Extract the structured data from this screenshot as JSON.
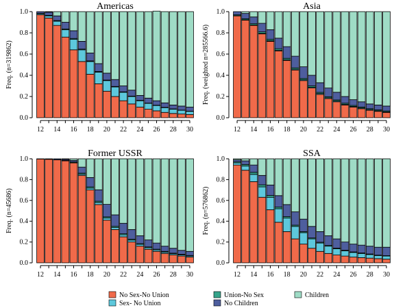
{
  "chart_data": {
    "type": "bar",
    "stacked": true,
    "categories": [
      12,
      13,
      14,
      15,
      16,
      17,
      18,
      19,
      20,
      21,
      22,
      23,
      24,
      25,
      26,
      27,
      28,
      29,
      30
    ],
    "x_tick_labels": [
      "12",
      "14",
      "16",
      "18",
      "20",
      "22",
      "24",
      "26",
      "28",
      "30"
    ],
    "y_ticks": [
      "0.0",
      "0.2",
      "0.4",
      "0.6",
      "0.8",
      "1.0"
    ],
    "ylim": [
      0,
      1
    ],
    "legend_position": "bottom",
    "series_order": [
      "No Sex-No Union",
      "Sex- No Union",
      "Union-No Sex",
      "No Children",
      "Children"
    ],
    "colors": {
      "No Sex-No Union": "#F06A4A",
      "Sex- No Union": "#5DC8DC",
      "Union-No Sex": "#35A38A",
      "No Children": "#4E5E9E",
      "Children": "#9FDCC6"
    },
    "legend": [
      {
        "label": "No Sex-No Union",
        "color": "#F06A4A"
      },
      {
        "label": "Union-No Sex",
        "color": "#35A38A"
      },
      {
        "label": "Children",
        "color": "#9FDCC6"
      },
      {
        "label": "Sex- No Union",
        "color": "#5DC8DC"
      },
      {
        "label": "No Children",
        "color": "#4E5E9E"
      }
    ],
    "panels": [
      {
        "title": "Americas",
        "ylabel": "Freq. (n=319862)",
        "series": [
          {
            "name": "No Sex-No Union",
            "values": [
              0.97,
              0.94,
              0.87,
              0.76,
              0.64,
              0.53,
              0.41,
              0.32,
              0.25,
              0.2,
              0.16,
              0.13,
              0.1,
              0.08,
              0.065,
              0.05,
              0.04,
              0.035,
              0.03
            ]
          },
          {
            "name": "Sex- No Union",
            "values": [
              0.01,
              0.02,
              0.04,
              0.07,
              0.1,
              0.11,
              0.12,
              0.11,
              0.1,
              0.09,
              0.08,
              0.07,
              0.06,
              0.055,
              0.05,
              0.045,
              0.04,
              0.035,
              0.03
            ]
          },
          {
            "name": "Union-No Sex",
            "values": [
              0.005,
              0.005,
              0.006,
              0.007,
              0.007,
              0.007,
              0.006,
              0.006,
              0.005,
              0.005,
              0.004,
              0.004,
              0.004,
              0.003,
              0.003,
              0.003,
              0.003,
              0.002,
              0.002
            ]
          },
          {
            "name": "No Children",
            "values": [
              0.015,
              0.03,
              0.044,
              0.063,
              0.073,
              0.073,
              0.074,
              0.074,
              0.065,
              0.065,
              0.056,
              0.056,
              0.046,
              0.047,
              0.042,
              0.042,
              0.037,
              0.038,
              0.038
            ]
          },
          {
            "name": "Children",
            "values": [
              0.0,
              0.005,
              0.04,
              0.1,
              0.18,
              0.28,
              0.39,
              0.49,
              0.58,
              0.64,
              0.7,
              0.74,
              0.79,
              0.815,
              0.845,
              0.86,
              0.88,
              0.89,
              0.9
            ]
          }
        ]
      },
      {
        "title": "Asia",
        "ylabel": "Freq. (weighted n=285566.6)",
        "series": [
          {
            "name": "No Sex-No Union",
            "values": [
              0.96,
              0.92,
              0.87,
              0.79,
              0.72,
              0.63,
              0.54,
              0.45,
              0.35,
              0.28,
              0.22,
              0.18,
              0.15,
              0.12,
              0.1,
              0.085,
              0.07,
              0.06,
              0.05
            ]
          },
          {
            "name": "Sex- No Union",
            "values": [
              0.002,
              0.003,
              0.004,
              0.005,
              0.006,
              0.007,
              0.007,
              0.008,
              0.008,
              0.008,
              0.008,
              0.008,
              0.008,
              0.007,
              0.007,
              0.007,
              0.007,
              0.006,
              0.006
            ]
          },
          {
            "name": "Union-No Sex",
            "values": [
              0.008,
              0.01,
              0.012,
              0.014,
              0.014,
              0.014,
              0.013,
              0.012,
              0.012,
              0.012,
              0.011,
              0.01,
              0.01,
              0.01,
              0.009,
              0.009,
              0.008,
              0.008,
              0.008
            ]
          },
          {
            "name": "No Children",
            "values": [
              0.03,
              0.05,
              0.064,
              0.081,
              0.09,
              0.099,
              0.11,
              0.11,
              0.11,
              0.1,
              0.091,
              0.082,
              0.072,
              0.063,
              0.054,
              0.049,
              0.045,
              0.046,
              0.046
            ]
          },
          {
            "name": "Children",
            "values": [
              0.0,
              0.017,
              0.05,
              0.11,
              0.17,
              0.25,
              0.33,
              0.42,
              0.52,
              0.6,
              0.67,
              0.72,
              0.76,
              0.8,
              0.83,
              0.85,
              0.87,
              0.88,
              0.89
            ]
          }
        ]
      },
      {
        "title": "Former USSR",
        "ylabel": "Freq. (n=45686)",
        "series": [
          {
            "name": "No Sex-No Union",
            "values": [
              0.998,
              0.995,
              0.99,
              0.98,
              0.96,
              0.84,
              0.7,
              0.56,
              0.41,
              0.32,
              0.25,
              0.2,
              0.16,
              0.13,
              0.11,
              0.09,
              0.075,
              0.065,
              0.055
            ]
          },
          {
            "name": "Sex- No Union",
            "values": [
              0.0,
              0.0,
              0.0,
              0.001,
              0.003,
              0.012,
              0.018,
              0.02,
              0.02,
              0.02,
              0.019,
              0.018,
              0.017,
              0.015,
              0.014,
              0.013,
              0.012,
              0.011,
              0.01
            ]
          },
          {
            "name": "Union-No Sex",
            "values": [
              0.0,
              0.0,
              0.002,
              0.004,
              0.007,
              0.01,
              0.012,
              0.012,
              0.012,
              0.011,
              0.01,
              0.009,
              0.008,
              0.008,
              0.007,
              0.007,
              0.006,
              0.006,
              0.006
            ]
          },
          {
            "name": "No Children",
            "values": [
              0.002,
              0.005,
              0.008,
              0.01,
              0.015,
              0.058,
              0.09,
              0.11,
              0.12,
              0.11,
              0.101,
              0.093,
              0.075,
              0.067,
              0.059,
              0.05,
              0.047,
              0.038,
              0.039
            ]
          },
          {
            "name": "Children",
            "values": [
              0.0,
              0.0,
              0.0,
              0.005,
              0.015,
              0.08,
              0.18,
              0.298,
              0.438,
              0.539,
              0.62,
              0.68,
              0.74,
              0.78,
              0.81,
              0.84,
              0.86,
              0.88,
              0.89
            ]
          }
        ]
      },
      {
        "title": "SSA",
        "ylabel": "Freq. (n=576862)",
        "series": [
          {
            "name": "No Sex-No Union",
            "values": [
              0.94,
              0.89,
              0.78,
              0.63,
              0.51,
              0.39,
              0.3,
              0.23,
              0.18,
              0.14,
              0.11,
              0.09,
              0.075,
              0.065,
              0.055,
              0.05,
              0.045,
              0.04,
              0.035
            ]
          },
          {
            "name": "Sex- No Union",
            "values": [
              0.02,
              0.04,
              0.07,
              0.1,
              0.12,
              0.13,
              0.13,
              0.12,
              0.11,
              0.09,
              0.08,
              0.07,
              0.06,
              0.05,
              0.045,
              0.04,
              0.035,
              0.03,
              0.03
            ]
          },
          {
            "name": "Union-No Sex",
            "values": [
              0.01,
              0.015,
              0.02,
              0.02,
              0.018,
              0.016,
              0.014,
              0.012,
              0.01,
              0.009,
              0.008,
              0.007,
              0.006,
              0.006,
              0.005,
              0.005,
              0.005,
              0.004,
              0.004
            ]
          },
          {
            "name": "No Children",
            "values": [
              0.02,
              0.035,
              0.07,
              0.09,
              0.1,
              0.11,
              0.116,
              0.128,
              0.12,
              0.111,
              0.102,
              0.093,
              0.089,
              0.079,
              0.075,
              0.075,
              0.075,
              0.076,
              0.081
            ]
          },
          {
            "name": "Children",
            "values": [
              0.01,
              0.02,
              0.06,
              0.16,
              0.252,
              0.354,
              0.44,
              0.51,
              0.58,
              0.65,
              0.7,
              0.74,
              0.77,
              0.8,
              0.82,
              0.83,
              0.84,
              0.85,
              0.85
            ]
          }
        ]
      }
    ]
  }
}
